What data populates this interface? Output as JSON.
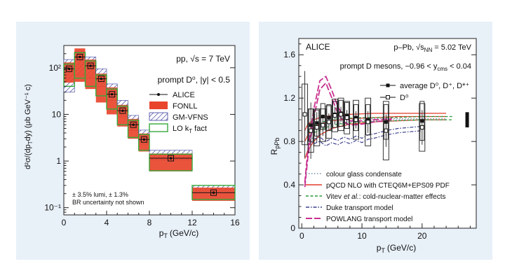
{
  "chart_data": [
    {
      "type": "bar",
      "xscale": "linear",
      "yscale": "log",
      "xlim": [
        0,
        16
      ],
      "ylim": [
        0.07,
        300
      ],
      "xlabel": "p",
      "xlabel_sub": "T",
      "xlabel_unit": "(GeV/c)",
      "ylabel": "d²σ/(dp",
      "ylabel_sub": "T",
      "ylabel_rest": "dy) (μb GeV⁻¹ c)",
      "xticks": [
        "0",
        "4",
        "8",
        "12",
        "16"
      ],
      "yticks": [
        "10⁻¹",
        "1",
        "10",
        "10²"
      ],
      "annotation": "pp, √s = 7 TeV",
      "legend_title": "prompt D⁰, |y| < 0.5",
      "legend": [
        {
          "label": "ALICE",
          "style": "marker"
        },
        {
          "label": "FONLL",
          "style": "solid",
          "color": "#e8452c"
        },
        {
          "label": "GM-VFNS",
          "style": "hatch",
          "color": "#3a3f9a"
        },
        {
          "label": "LO k",
          "label_sub": "T",
          "label_rest": " fact",
          "style": "outline",
          "color": "#36a83a"
        }
      ],
      "note": [
        "± 3.5% lumi, ± 1.3%",
        "BR uncertainty not shown"
      ],
      "bins": [
        {
          "lo": 0,
          "hi": 1,
          "value": 95,
          "fonll": [
            48,
            130
          ],
          "gmvfns": [
            30,
            150
          ],
          "kt": [
            40,
            120
          ]
        },
        {
          "lo": 1,
          "hi": 2,
          "value": 170,
          "fonll": [
            50,
            260
          ],
          "gmvfns": [
            70,
            220
          ],
          "kt": [
            60,
            210
          ]
        },
        {
          "lo": 2,
          "hi": 3,
          "value": 110,
          "fonll": [
            35,
            150
          ],
          "gmvfns": [
            60,
            170
          ],
          "kt": [
            40,
            140
          ]
        },
        {
          "lo": 3,
          "hi": 4,
          "value": 58,
          "fonll": [
            18,
            75
          ],
          "gmvfns": [
            40,
            95
          ],
          "kt": [
            25,
            70
          ]
        },
        {
          "lo": 4,
          "hi": 5,
          "value": 27,
          "fonll": [
            10,
            38
          ],
          "gmvfns": [
            20,
            45
          ],
          "kt": [
            13,
            35
          ]
        },
        {
          "lo": 5,
          "hi": 6,
          "value": 12,
          "fonll": [
            5.5,
            16
          ],
          "gmvfns": [
            9,
            20
          ],
          "kt": [
            6,
            15
          ]
        },
        {
          "lo": 6,
          "hi": 7,
          "value": 6,
          "fonll": [
            3,
            8
          ],
          "gmvfns": [
            4.5,
            9.5
          ],
          "kt": [
            3.2,
            7.5
          ]
        },
        {
          "lo": 7,
          "hi": 8,
          "value": 2.9,
          "fonll": [
            1.6,
            3.9
          ],
          "gmvfns": [
            2.3,
            4.6
          ],
          "kt": [
            1.7,
            3.7
          ]
        },
        {
          "lo": 8,
          "hi": 12,
          "value": 1.15,
          "fonll": [
            0.6,
            1.45
          ],
          "gmvfns": [
            1.05,
            1.7
          ],
          "kt": [
            0.62,
            1.4
          ]
        },
        {
          "lo": 12,
          "hi": 16,
          "value": 0.21,
          "fonll": [
            0.14,
            0.27
          ],
          "gmvfns": [
            0.24,
            0.3
          ],
          "kt": [
            0.15,
            0.3
          ]
        }
      ]
    },
    {
      "type": "line",
      "xlim": [
        -0.5,
        29
      ],
      "ylim": [
        0,
        1.75
      ],
      "xlabel": "p",
      "xlabel_sub": "T",
      "xlabel_unit": "(GeV/c)",
      "ylabel": "R",
      "ylabel_sub": "pPb",
      "xticks": [
        0,
        10,
        20
      ],
      "yticks": [
        "0",
        "0.4",
        "0.8",
        "1.2",
        "1.6"
      ],
      "experiment": "ALICE",
      "system": "p–Pb, √s",
      "system_sub": "NN",
      "system_rest": " = 5.02 TeV",
      "selection": "prompt D mesons, −0.96 < y",
      "selection_sub": "cms",
      "selection_rest": " < 0.04",
      "normalization_uncertainty": [
        0.93,
        1.07
      ],
      "series": [
        {
          "name": "average D⁰, D⁺, D*⁺",
          "marker": "filled-square",
          "x": [
            1.5,
            2.5,
            3.5,
            4.5,
            5.5,
            6.5,
            7.5,
            9,
            11,
            14,
            20
          ],
          "y": [
            0.95,
            0.97,
            1.03,
            1.02,
            1.05,
            1.06,
            1.04,
            1.02,
            1.0,
            0.98,
            0.99
          ],
          "sys": [
            0.15,
            0.12,
            0.12,
            0.12,
            0.12,
            0.12,
            0.12,
            0.12,
            0.14,
            0.16,
            0.18
          ]
        },
        {
          "name": "D⁰",
          "marker": "open-square",
          "x": [
            0.5,
            1.5,
            2.5,
            3.5,
            4.5,
            5.5,
            6.5,
            7.5,
            9,
            11,
            14,
            20
          ],
          "y": [
            1.05,
            0.9,
            0.93,
            0.95,
            0.98,
            1.04,
            1.05,
            1.02,
            1.0,
            0.98,
            0.9,
            0.93
          ],
          "sys": [
            0.28,
            0.2,
            0.17,
            0.15,
            0.15,
            0.15,
            0.15,
            0.15,
            0.18,
            0.22,
            0.27,
            0.22
          ],
          "stat": [
            0.4,
            0.26,
            0.14,
            0.1,
            0.08,
            0.08,
            0.07,
            0.07,
            0.08,
            0.1,
            0.15,
            0.16
          ]
        }
      ],
      "models": [
        {
          "name": "colour glass condensate",
          "style": "dotted",
          "color": "#7a8fa8",
          "band": [
            {
              "x": [
                1,
                2,
                3,
                5,
                8,
                12,
                16,
                20,
                24
              ],
              "y": [
                0.88,
                0.9,
                0.93,
                0.96,
                0.98,
                0.99,
                1.0,
                1.0,
                1.0
              ]
            },
            {
              "x": [
                1,
                2,
                3,
                5,
                8,
                12,
                16,
                20,
                24
              ],
              "y": [
                0.93,
                0.95,
                0.97,
                0.99,
                1.0,
                1.01,
                1.01,
                1.01,
                1.01
              ]
            }
          ]
        },
        {
          "name": "pQCD NLO with CTEQ6M+EPS09 PDF",
          "style": "solid",
          "color": "#e23a2a",
          "band": [
            {
              "x": [
                0.5,
                1,
                2,
                3,
                5,
                8,
                12,
                16,
                20,
                24
              ],
              "y": [
                0.64,
                0.72,
                0.8,
                0.86,
                0.92,
                0.96,
                0.98,
                0.99,
                1.0,
                1.0
              ]
            },
            {
              "x": [
                0.5,
                1,
                2,
                3,
                5,
                8,
                12,
                16,
                20,
                24
              ],
              "y": [
                0.8,
                0.86,
                0.92,
                0.96,
                0.99,
                1.01,
                1.02,
                1.03,
                1.03,
                1.03
              ]
            },
            {
              "x": [
                0.5,
                1,
                2,
                3,
                5,
                8,
                12,
                16,
                20,
                24
              ],
              "y": [
                0.9,
                0.96,
                1.0,
                1.02,
                1.04,
                1.05,
                1.06,
                1.06,
                1.06,
                1.06
              ]
            }
          ]
        },
        {
          "name": "Vitev",
          "name_italic": "et al.",
          "name_rest": ": cold-nuclear-matter effects",
          "style": "dashed",
          "color": "#2a9a3a",
          "band": [
            {
              "x": [
                2,
                4,
                6,
                10,
                15,
                20,
                25
              ],
              "y": [
                0.88,
                0.93,
                0.96,
                0.98,
                0.99,
                1.0,
                1.0
              ]
            },
            {
              "x": [
                2,
                4,
                6,
                10,
                15,
                20,
                25
              ],
              "y": [
                0.95,
                0.99,
                1.01,
                1.02,
                1.02,
                1.03,
                1.03
              ]
            }
          ]
        },
        {
          "name": "Duke transport model",
          "style": "dashdot",
          "color": "#3a3f8a",
          "band": [
            {
              "x": [
                1,
                2,
                3,
                4,
                5,
                6,
                7,
                8,
                9,
                10,
                11,
                12,
                14,
                16,
                18,
                20
              ],
              "y": [
                0.82,
                0.78,
                0.8,
                0.76,
                0.79,
                0.77,
                0.8,
                0.78,
                0.81,
                0.79,
                0.82,
                0.83,
                0.86,
                0.88,
                0.89,
                0.9
              ]
            },
            {
              "x": [
                1,
                2,
                3,
                4,
                5,
                6,
                7,
                8,
                9,
                10,
                11,
                12,
                14,
                16,
                18,
                20
              ],
              "y": [
                0.86,
                0.82,
                0.84,
                0.8,
                0.83,
                0.81,
                0.84,
                0.82,
                0.85,
                0.83,
                0.86,
                0.87,
                0.9,
                0.92,
                0.93,
                0.94
              ]
            }
          ]
        },
        {
          "name": "POWLANG transport model",
          "style": "longdash",
          "color": "#c8318f",
          "band": [
            {
              "x": [
                0.5,
                1,
                2,
                3,
                4,
                5,
                6,
                7,
                8,
                10,
                12,
                15
              ],
              "y": [
                0.38,
                0.65,
                1.02,
                1.28,
                1.34,
                1.2,
                1.06,
                0.98,
                0.95,
                0.96,
                0.98,
                1.0
              ]
            },
            {
              "x": [
                0.5,
                1,
                2,
                3,
                4,
                5,
                6,
                7,
                8,
                10,
                12,
                15
              ],
              "y": [
                0.42,
                0.72,
                1.1,
                1.36,
                1.4,
                1.27,
                1.12,
                1.03,
                0.99,
                0.99,
                1.0,
                1.01
              ]
            }
          ]
        }
      ]
    }
  ]
}
